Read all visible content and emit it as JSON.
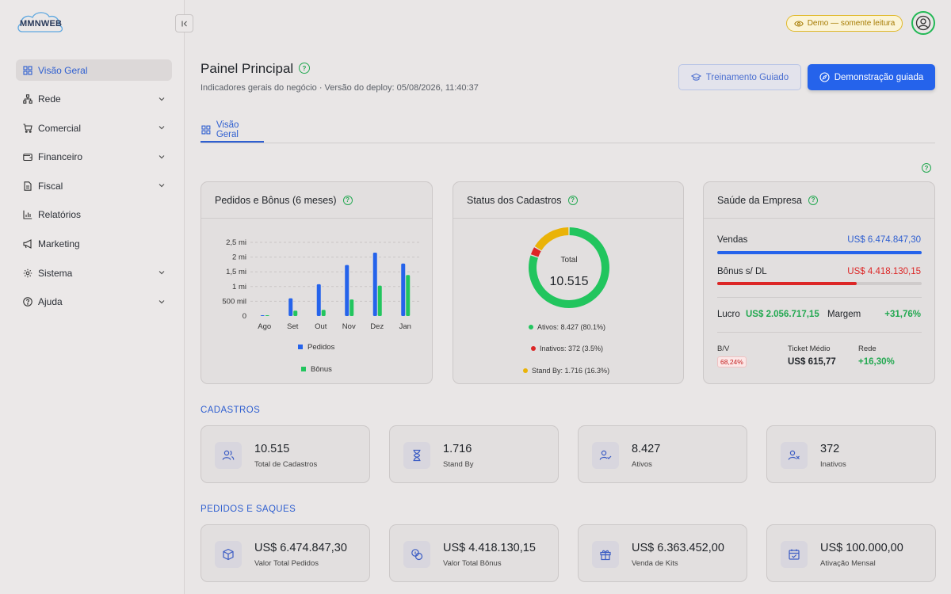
{
  "brand": {
    "logo_text": "MMNWEB"
  },
  "sidebar": {
    "items": [
      {
        "label": "Visão Geral",
        "icon": "grid-icon",
        "active": true,
        "expandable": false
      },
      {
        "label": "Rede",
        "icon": "network-icon",
        "expandable": true
      },
      {
        "label": "Comercial",
        "icon": "cart-icon",
        "expandable": true
      },
      {
        "label": "Financeiro",
        "icon": "wallet-icon",
        "expandable": true
      },
      {
        "label": "Fiscal",
        "icon": "document-icon",
        "expandable": true
      },
      {
        "label": "Relatórios",
        "icon": "bar-chart-icon",
        "expandable": false
      },
      {
        "label": "Marketing",
        "icon": "megaphone-icon",
        "expandable": false
      },
      {
        "label": "Sistema",
        "icon": "gear-icon",
        "expandable": true
      },
      {
        "label": "Ajuda",
        "icon": "help-circle-icon",
        "expandable": true
      }
    ]
  },
  "topbar": {
    "demo_badge": "Demo — somente leitura"
  },
  "header": {
    "title": "Painel Principal",
    "subtitle": "Indicadores gerais do negócio · Versão do deploy: 05/08/2026, 11:40:37",
    "btn_training": "Treinamento Guiado",
    "btn_demo": "Demonstração guiada",
    "tab": "Visão Geral"
  },
  "cards": {
    "orders": {
      "title": "Pedidos e Bônus (6 meses)"
    },
    "status": {
      "title": "Status dos Cadastros",
      "total_label": "Total",
      "total_value": "10.515"
    },
    "health": {
      "title": "Saúde da Empresa",
      "sales_label": "Vendas",
      "sales_value": "US$ 6.474.847,30",
      "sales_fill": 1.0,
      "bonus_label": "Bônus s/ DL",
      "bonus_value": "US$ 4.418.130,15",
      "bonus_fill": 0.682,
      "profit_label": "Lucro",
      "profit_value": "US$ 2.056.717,15",
      "margin_label": "Margem",
      "margin_value": "+31,76%",
      "bv_label": "B/V",
      "bv_value": "68,24%",
      "ticket_label": "Ticket Médio",
      "ticket_value": "US$ 615,77",
      "rede_label": "Rede",
      "rede_value": "+16,30%"
    }
  },
  "chart_data": [
    {
      "type": "bar",
      "title": "Pedidos e Bônus (6 meses)",
      "categories": [
        "Ago",
        "Set",
        "Out",
        "Nov",
        "Dez",
        "Jan"
      ],
      "y_tick_labels": [
        "0",
        "500 mil",
        "1 mi",
        "1,5 mi",
        "2 mi",
        "2,5 mi"
      ],
      "ylim": [
        0,
        2500000
      ],
      "series": [
        {
          "name": "Pedidos",
          "color": "#2563eb",
          "values": [
            0,
            600000,
            1080000,
            1730000,
            2150000,
            1780000
          ]
        },
        {
          "name": "Bônus",
          "color": "#22c55e",
          "values": [
            0,
            180000,
            210000,
            560000,
            1030000,
            1390000
          ]
        }
      ],
      "legend": "bottom",
      "grid": true
    },
    {
      "type": "pie",
      "title": "Status dos Cadastros",
      "slices": [
        {
          "name": "Ativos",
          "value": 8427,
          "percent": 80.1,
          "color": "#22c55e",
          "label": "Ativos: 8.427 (80.1%)"
        },
        {
          "name": "Inativos",
          "value": 372,
          "percent": 3.5,
          "color": "#dc2626",
          "label": "Inativos: 372 (3.5%)"
        },
        {
          "name": "Stand By",
          "value": 1716,
          "percent": 16.3,
          "color": "#eab308",
          "label": "Stand By: 1.716 (16.3%)"
        }
      ]
    }
  ],
  "sections": {
    "cadastros": {
      "title": "CADASTROS",
      "stats": [
        {
          "value": "10.515",
          "label": "Total de Cadastros",
          "icon": "users-icon"
        },
        {
          "value": "1.716",
          "label": "Stand By",
          "icon": "hourglass-icon"
        },
        {
          "value": "8.427",
          "label": "Ativos",
          "icon": "user-check-icon"
        },
        {
          "value": "372",
          "label": "Inativos",
          "icon": "user-x-icon"
        }
      ]
    },
    "pedidos": {
      "title": "PEDIDOS E SAQUES",
      "stats": [
        {
          "value": "US$ 6.474.847,30",
          "label": "Valor Total Pedidos",
          "icon": "box-icon"
        },
        {
          "value": "US$ 4.418.130,15",
          "label": "Valor Total Bônus",
          "icon": "coins-icon"
        },
        {
          "value": "US$ 6.363.452,00",
          "label": "Venda de Kits",
          "icon": "gift-icon"
        },
        {
          "value": "US$ 100.000,00",
          "label": "Ativação Mensal",
          "icon": "calendar-check-icon"
        }
      ]
    }
  }
}
